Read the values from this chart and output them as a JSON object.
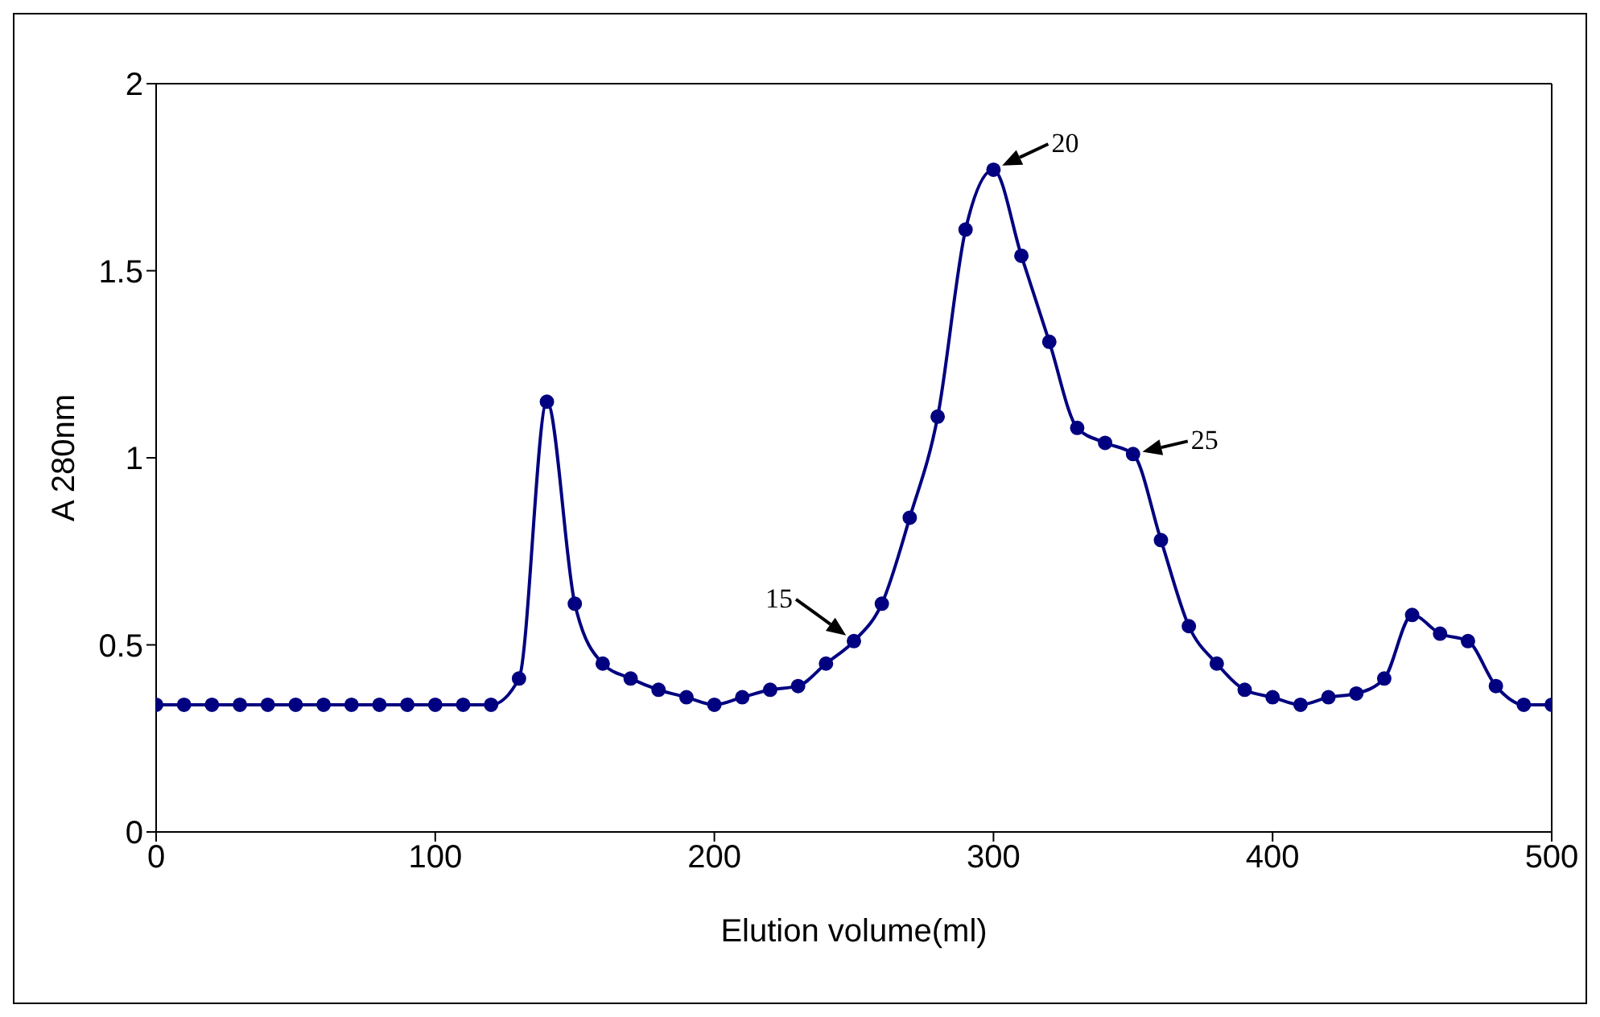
{
  "chart_data": {
    "type": "line",
    "xlabel": "Elution volume(ml)",
    "ylabel": "A 280nm",
    "x": [
      0,
      10,
      20,
      30,
      40,
      50,
      60,
      70,
      80,
      90,
      100,
      110,
      120,
      130,
      140,
      150,
      160,
      170,
      180,
      190,
      200,
      210,
      220,
      230,
      240,
      250,
      260,
      270,
      280,
      290,
      300,
      310,
      320,
      330,
      340,
      350,
      360,
      370,
      380,
      390,
      400,
      410,
      420,
      430,
      440,
      450,
      460,
      470,
      480,
      490,
      500
    ],
    "series": [
      {
        "color": "#000080",
        "values": [
          0.34,
          0.34,
          0.34,
          0.34,
          0.34,
          0.34,
          0.34,
          0.34,
          0.34,
          0.34,
          0.34,
          0.34,
          0.34,
          0.41,
          1.15,
          0.61,
          0.45,
          0.41,
          0.38,
          0.36,
          0.34,
          0.36,
          0.38,
          0.39,
          0.45,
          0.51,
          0.61,
          0.84,
          1.11,
          1.61,
          1.77,
          1.54,
          1.31,
          1.08,
          1.04,
          1.01,
          0.78,
          0.55,
          0.45,
          0.38,
          0.36,
          0.34,
          0.36,
          0.37,
          0.41,
          0.58,
          0.53,
          0.51,
          0.39,
          0.34,
          0.34
        ]
      }
    ],
    "xlim": [
      0,
      500
    ],
    "xticks": [
      0,
      100,
      200,
      300,
      400,
      500
    ],
    "ylim": [
      0,
      2
    ],
    "yticks": [
      0,
      0.5,
      1,
      1.5,
      2
    ],
    "marker": "circle",
    "grid": false,
    "legend": false,
    "annotations": [
      {
        "text": "15",
        "x": 250,
        "y": 0.51
      },
      {
        "text": "20",
        "x": 300,
        "y": 1.77
      },
      {
        "text": "25",
        "x": 350,
        "y": 1.01
      }
    ]
  }
}
